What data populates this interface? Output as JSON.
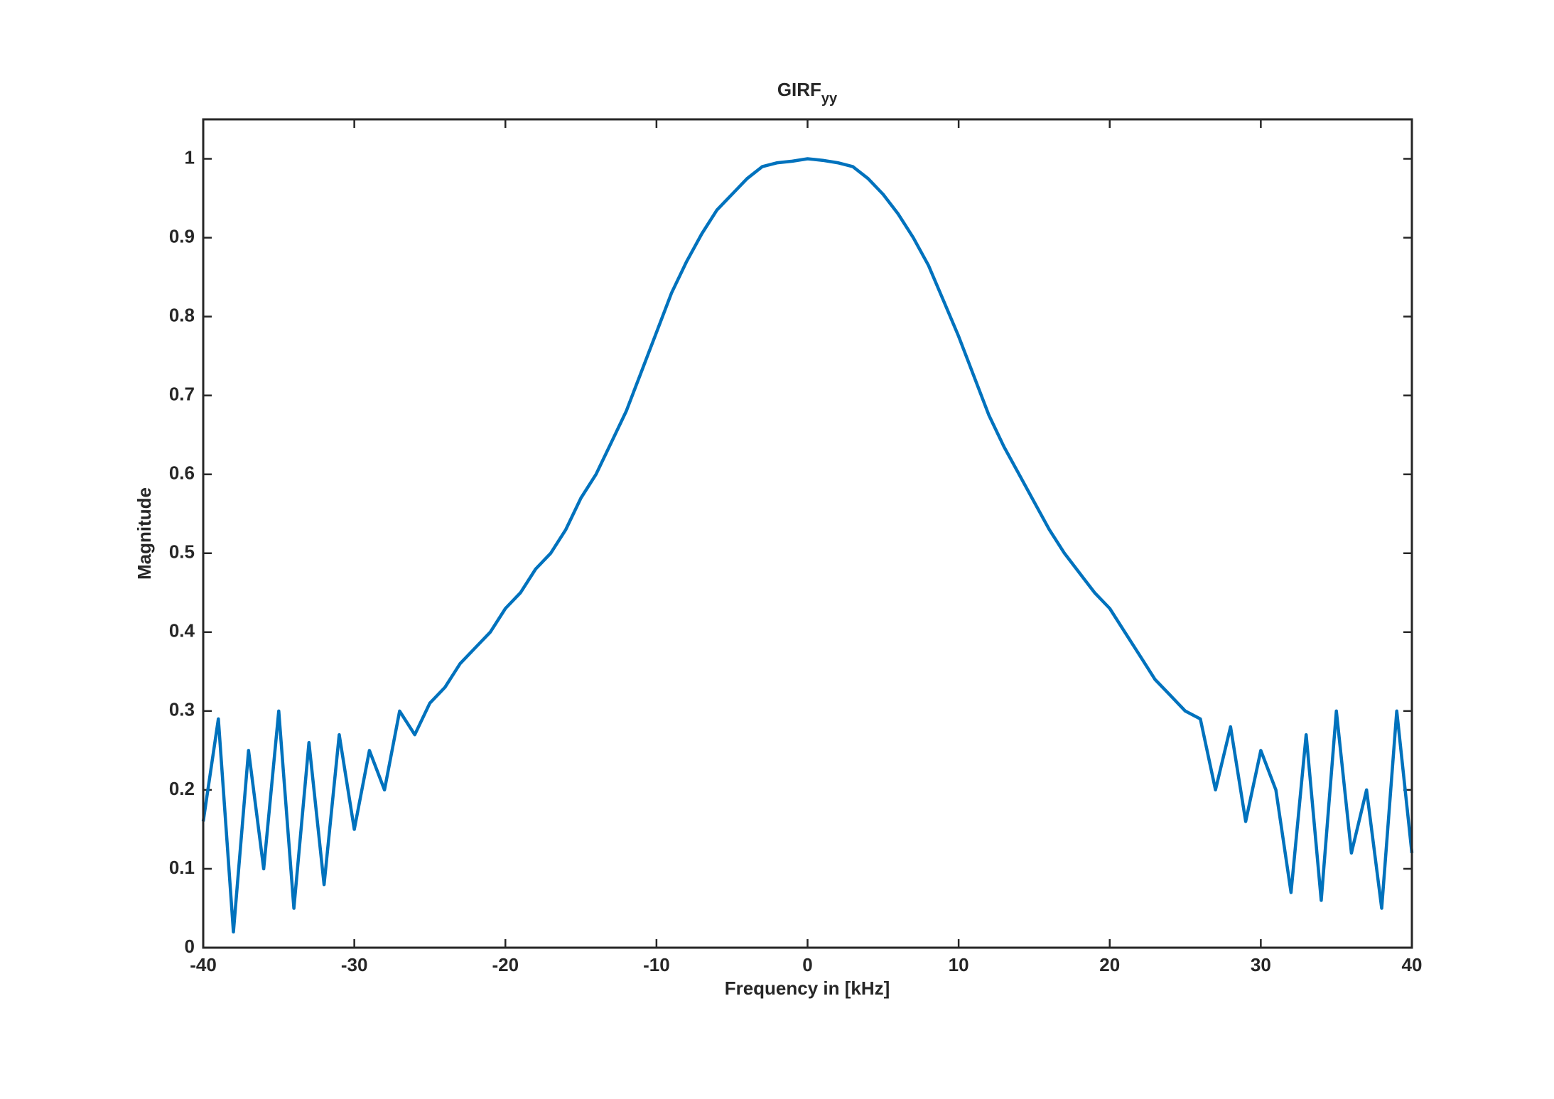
{
  "chart_data": {
    "type": "line",
    "title": "GIRF",
    "title_subscript": "yy",
    "xlabel": "Frequency in [kHz]",
    "ylabel": "Magnitude",
    "color": "#0072bd",
    "x": [
      -40,
      -39,
      -38,
      -37,
      -36,
      -35,
      -34,
      -33,
      -32,
      -31,
      -30,
      -29,
      -28,
      -27,
      -26,
      -25,
      -24,
      -23,
      -22,
      -21,
      -20,
      -19,
      -18,
      -17,
      -16,
      -15,
      -14,
      -13,
      -12,
      -11,
      -10,
      -9,
      -8,
      -7,
      -6,
      -5,
      -4,
      -3,
      -2,
      -1,
      0,
      1,
      2,
      3,
      4,
      5,
      6,
      7,
      8,
      9,
      10,
      11,
      12,
      13,
      14,
      15,
      16,
      17,
      18,
      19,
      20,
      21,
      22,
      23,
      24,
      25,
      26,
      27,
      28,
      29,
      30,
      31,
      32,
      33,
      34,
      35,
      36,
      37,
      38,
      39,
      40
    ],
    "values": [
      0.16,
      0.29,
      0.02,
      0.25,
      0.1,
      0.3,
      0.05,
      0.26,
      0.08,
      0.27,
      0.15,
      0.25,
      0.2,
      0.3,
      0.27,
      0.31,
      0.33,
      0.36,
      0.38,
      0.4,
      0.43,
      0.45,
      0.48,
      0.5,
      0.53,
      0.57,
      0.6,
      0.64,
      0.68,
      0.73,
      0.78,
      0.83,
      0.87,
      0.905,
      0.935,
      0.955,
      0.975,
      0.99,
      0.995,
      0.997,
      1.0,
      0.998,
      0.995,
      0.99,
      0.975,
      0.955,
      0.93,
      0.9,
      0.865,
      0.82,
      0.775,
      0.725,
      0.675,
      0.635,
      0.6,
      0.565,
      0.53,
      0.5,
      0.475,
      0.45,
      0.43,
      0.4,
      0.37,
      0.34,
      0.32,
      0.3,
      0.29,
      0.2,
      0.28,
      0.16,
      0.25,
      0.2,
      0.07,
      0.27,
      0.06,
      0.3,
      0.12,
      0.2,
      0.05,
      0.3,
      0.12
    ],
    "xlim": [
      -40,
      40
    ],
    "xticks": [
      -40,
      -30,
      -20,
      -10,
      0,
      10,
      20,
      30,
      40
    ],
    "ylim": [
      0,
      1.05
    ],
    "yticks": [
      0,
      0.1,
      0.2,
      0.3,
      0.4,
      0.5,
      0.6,
      0.7,
      0.8,
      0.9,
      1
    ]
  }
}
